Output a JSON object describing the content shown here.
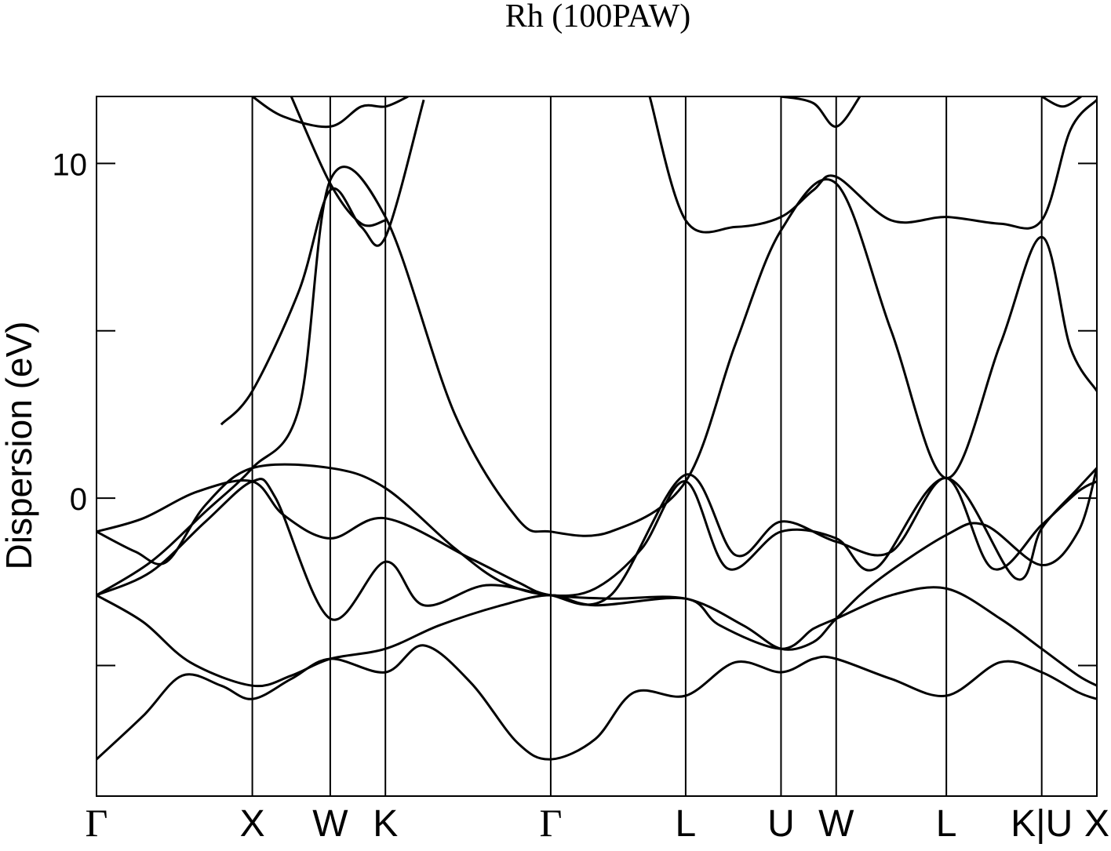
{
  "chart_data": {
    "type": "line",
    "title": "Rh (100PAW)",
    "xlabel": "",
    "ylabel": "Dispersion (eV)",
    "ylim": [
      -8.9,
      12.0
    ],
    "y_ticks": [
      10,
      0
    ],
    "y_minor_ticks": [
      5,
      -5
    ],
    "grid": false,
    "legend": "none",
    "high_symmetry_points": [
      {
        "label": "Γ",
        "x": 0
      },
      {
        "label": "X",
        "x": 1.0
      },
      {
        "label": "W",
        "x": 1.5
      },
      {
        "label": "K",
        "x": 1.854
      },
      {
        "label": "Γ",
        "x": 2.915
      },
      {
        "label": "L",
        "x": 3.781
      },
      {
        "label": "U",
        "x": 4.393
      },
      {
        "label": "W",
        "x": 4.747
      },
      {
        "label": "L",
        "x": 5.454
      },
      {
        "label": "K|U",
        "x": 6.066
      },
      {
        "label": "X",
        "x": 6.42
      }
    ],
    "x_range": [
      0,
      6.42
    ],
    "series": [
      {
        "values": [
          [
            0,
            -7.8
          ],
          [
            0.3,
            -6.5
          ],
          [
            0.55,
            -5.3
          ],
          [
            0.8,
            -5.6
          ],
          [
            1.0,
            -6.0
          ],
          [
            1.25,
            -5.4
          ],
          [
            1.5,
            -4.8
          ],
          [
            1.854,
            -5.2
          ],
          [
            2.1,
            -4.4
          ],
          [
            2.4,
            -5.5
          ],
          [
            2.7,
            -7.3
          ],
          [
            2.915,
            -7.8
          ],
          [
            3.2,
            -7.2
          ],
          [
            3.45,
            -5.8
          ],
          [
            3.781,
            -5.9
          ],
          [
            4.1,
            -4.9
          ],
          [
            4.393,
            -5.2
          ],
          [
            4.6,
            -4.8
          ],
          [
            4.747,
            -4.8
          ],
          [
            5.1,
            -5.4
          ],
          [
            5.454,
            -5.9
          ],
          [
            5.8,
            -4.9
          ],
          [
            6.066,
            -5.2
          ],
          [
            6.3,
            -5.8
          ],
          [
            6.42,
            -6.0
          ]
        ]
      },
      {
        "values": [
          [
            0,
            -2.9
          ],
          [
            0.3,
            -3.7
          ],
          [
            0.6,
            -4.9
          ],
          [
            1.0,
            -5.6
          ],
          [
            1.25,
            -5.3
          ],
          [
            1.5,
            -4.8
          ],
          [
            1.854,
            -4.5
          ],
          [
            2.2,
            -3.8
          ],
          [
            2.6,
            -3.2
          ],
          [
            2.915,
            -2.9
          ],
          [
            3.2,
            -3.2
          ],
          [
            3.781,
            -3.0
          ],
          [
            4.0,
            -3.8
          ],
          [
            4.393,
            -4.5
          ],
          [
            4.6,
            -3.9
          ],
          [
            4.747,
            -3.6
          ],
          [
            5.1,
            -2.9
          ],
          [
            5.454,
            -2.7
          ],
          [
            5.8,
            -3.6
          ],
          [
            6.066,
            -4.5
          ],
          [
            6.3,
            -5.3
          ],
          [
            6.42,
            -5.6
          ]
        ]
      },
      {
        "values": [
          [
            0,
            -2.9
          ],
          [
            0.35,
            -2.2
          ],
          [
            0.7,
            -0.7
          ],
          [
            1.0,
            0.5
          ],
          [
            1.15,
            0.0
          ],
          [
            1.5,
            -3.6
          ],
          [
            1.854,
            -1.9
          ],
          [
            2.1,
            -3.2
          ],
          [
            2.5,
            -2.6
          ],
          [
            2.915,
            -2.9
          ],
          [
            3.3,
            -3.0
          ],
          [
            3.781,
            -3.0
          ],
          [
            4.15,
            -3.8
          ],
          [
            4.393,
            -4.5
          ],
          [
            4.6,
            -4.3
          ],
          [
            4.747,
            -3.6
          ],
          [
            5.0,
            -2.5
          ],
          [
            5.454,
            -1.1
          ],
          [
            5.7,
            -0.8
          ],
          [
            6.066,
            -2.0
          ],
          [
            6.3,
            -1.0
          ],
          [
            6.42,
            0.9
          ]
        ]
      },
      {
        "values": [
          [
            0,
            -1.0
          ],
          [
            0.25,
            -1.6
          ],
          [
            0.45,
            -1.9
          ],
          [
            0.7,
            -0.2
          ],
          [
            1.0,
            0.9
          ],
          [
            1.5,
            0.9
          ],
          [
            1.854,
            0.3
          ],
          [
            2.3,
            -1.5
          ],
          [
            2.6,
            -2.5
          ],
          [
            2.915,
            -2.9
          ],
          [
            3.2,
            -2.7
          ],
          [
            3.5,
            -1.5
          ],
          [
            3.781,
            0.5
          ],
          [
            4.05,
            -2.1
          ],
          [
            4.393,
            -1.0
          ],
          [
            4.747,
            -1.2
          ],
          [
            5.0,
            -2.1
          ],
          [
            5.454,
            0.6
          ],
          [
            5.9,
            -2.4
          ],
          [
            6.066,
            -0.9
          ],
          [
            6.3,
            0.3
          ],
          [
            6.42,
            0.9
          ]
        ]
      },
      {
        "values": [
          [
            0,
            -1.0
          ],
          [
            0.3,
            -0.6
          ],
          [
            0.65,
            0.2
          ],
          [
            1.0,
            0.5
          ],
          [
            1.2,
            -0.5
          ],
          [
            1.5,
            -1.2
          ],
          [
            1.854,
            -0.6
          ],
          [
            2.4,
            -1.8
          ],
          [
            2.7,
            -2.5
          ],
          [
            2.915,
            -2.9
          ],
          [
            3.3,
            -2.9
          ],
          [
            3.781,
            0.7
          ],
          [
            4.1,
            -1.7
          ],
          [
            4.393,
            -0.7
          ],
          [
            4.747,
            -1.3
          ],
          [
            5.1,
            -1.6
          ],
          [
            5.454,
            0.6
          ],
          [
            5.75,
            -2.1
          ],
          [
            6.066,
            -0.8
          ],
          [
            6.3,
            0.2
          ],
          [
            6.42,
            0.5
          ]
        ]
      },
      {
        "values": [
          [
            0,
            -2.9
          ],
          [
            0.35,
            -1.9
          ],
          [
            0.7,
            -0.4
          ],
          [
            1.0,
            0.9
          ],
          [
            1.3,
            2.7
          ],
          [
            1.5,
            9.5
          ],
          [
            1.854,
            8.4
          ],
          [
            2.3,
            2.5
          ],
          [
            2.7,
            -0.6
          ],
          [
            2.915,
            -1.0
          ],
          [
            3.3,
            -1.0
          ],
          [
            3.781,
            0.5
          ],
          [
            4.1,
            4.6
          ],
          [
            4.393,
            8.0
          ],
          [
            4.747,
            9.4
          ],
          [
            5.1,
            5.0
          ],
          [
            5.454,
            0.6
          ],
          [
            5.8,
            4.6
          ],
          [
            6.066,
            7.8
          ],
          [
            6.25,
            4.5
          ],
          [
            6.42,
            3.2
          ]
        ]
      },
      {
        "values": [
          [
            0.8,
            2.2
          ],
          [
            1.0,
            3.2
          ],
          [
            1.3,
            6.2
          ],
          [
            1.5,
            9.2
          ],
          [
            1.7,
            8.1
          ],
          [
            1.854,
            7.8
          ],
          [
            2.1,
            11.9
          ]
        ]
      },
      {
        "values": [
          [
            1.0,
            12.0
          ],
          [
            1.2,
            11.4
          ],
          [
            1.5,
            11.1
          ],
          [
            1.7,
            11.7
          ],
          [
            1.854,
            11.7
          ],
          [
            2.0,
            12.0
          ]
        ]
      },
      {
        "values": [
          [
            1.25,
            12.0
          ],
          [
            1.5,
            9.4
          ],
          [
            1.7,
            8.2
          ],
          [
            1.854,
            8.3
          ]
        ]
      },
      {
        "values": [
          [
            3.55,
            12.0
          ],
          [
            3.781,
            8.3
          ],
          [
            4.1,
            8.1
          ],
          [
            4.393,
            8.4
          ],
          [
            4.6,
            9.2
          ],
          [
            4.747,
            9.6
          ],
          [
            5.1,
            8.3
          ],
          [
            5.454,
            8.4
          ],
          [
            5.8,
            8.2
          ],
          [
            6.066,
            8.3
          ],
          [
            6.25,
            11.0
          ],
          [
            6.42,
            11.9
          ]
        ]
      },
      {
        "values": [
          [
            4.393,
            12.0
          ],
          [
            4.6,
            11.8
          ],
          [
            4.747,
            11.1
          ],
          [
            4.9,
            12.0
          ]
        ]
      },
      {
        "values": [
          [
            6.066,
            12.0
          ],
          [
            6.2,
            11.7
          ],
          [
            6.32,
            12.0
          ]
        ]
      }
    ]
  }
}
